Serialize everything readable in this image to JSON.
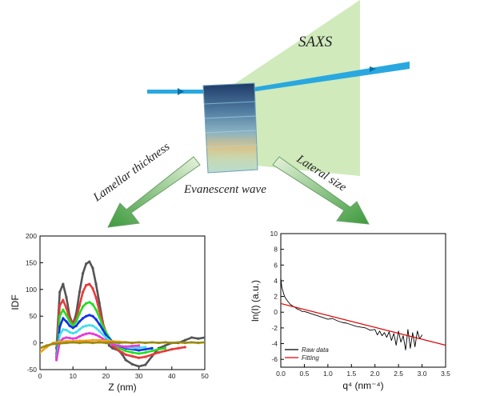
{
  "diagram": {
    "saxs_label": "SAXS",
    "lamellar_label": "Lamellar thickness",
    "lateral_label": "Lateral size",
    "evanescent_label": "Evanescent wave"
  },
  "chart_data": [
    {
      "type": "line",
      "xlabel": "Z (nm)",
      "ylabel": "IDF",
      "xlim": [
        0,
        50
      ],
      "ylim": [
        -50,
        200
      ],
      "xticks": [
        "0",
        "10",
        "20",
        "30",
        "40",
        "50"
      ],
      "yticks": [
        "-50",
        "0",
        "50",
        "100",
        "150",
        "200"
      ],
      "series": [
        {
          "name": "dark gray",
          "color": "#555555",
          "x": [
            5,
            6,
            7,
            8,
            9,
            10,
            11,
            12,
            13,
            14,
            15,
            16,
            17,
            18,
            19,
            20,
            21,
            22,
            23,
            24,
            25,
            26,
            28,
            30,
            32,
            34,
            36,
            38,
            40,
            42,
            44,
            46,
            48,
            50
          ],
          "y": [
            -10,
            95,
            110,
            85,
            50,
            35,
            55,
            95,
            130,
            148,
            152,
            140,
            110,
            75,
            40,
            10,
            -5,
            -10,
            -12,
            -15,
            -22,
            -32,
            -40,
            -44,
            -41,
            -25,
            -10,
            -5,
            0,
            0,
            5,
            10,
            8,
            10
          ]
        },
        {
          "name": "red",
          "color": "#e83a3a",
          "x": [
            5,
            6,
            7,
            8,
            9,
            10,
            11,
            12,
            13,
            14,
            15,
            16,
            17,
            18,
            19,
            20,
            21,
            22,
            23,
            24,
            25,
            26,
            28,
            30,
            32,
            34,
            36,
            38,
            40,
            42,
            44
          ],
          "y": [
            -20,
            70,
            80,
            65,
            45,
            35,
            45,
            70,
            95,
            108,
            110,
            102,
            85,
            60,
            38,
            20,
            5,
            -5,
            -10,
            -15,
            -18,
            -22,
            -25,
            -28,
            -26,
            -22,
            -18,
            -15,
            -12,
            -10,
            -8
          ]
        },
        {
          "name": "green",
          "color": "#22dd22",
          "x": [
            5,
            6,
            7,
            8,
            9,
            10,
            11,
            12,
            13,
            14,
            15,
            16,
            17,
            18,
            19,
            20,
            21,
            22,
            23,
            24,
            26,
            28,
            30,
            32,
            34,
            36,
            38
          ],
          "y": [
            -25,
            50,
            62,
            52,
            40,
            32,
            40,
            55,
            68,
            74,
            76,
            72,
            62,
            48,
            32,
            20,
            10,
            2,
            -5,
            -10,
            -15,
            -18,
            -20,
            -18,
            -15,
            -12,
            -10
          ]
        },
        {
          "name": "blue",
          "color": "#1030e8",
          "x": [
            5,
            6,
            7,
            8,
            9,
            10,
            11,
            12,
            13,
            14,
            15,
            16,
            17,
            18,
            19,
            20,
            21,
            22,
            23,
            24,
            26,
            28,
            30,
            32,
            34
          ],
          "y": [
            -28,
            30,
            46,
            40,
            32,
            28,
            32,
            40,
            46,
            50,
            52,
            50,
            44,
            35,
            25,
            15,
            8,
            2,
            -3,
            -6,
            -10,
            -12,
            -14,
            -12,
            -10
          ]
        },
        {
          "name": "cyan",
          "color": "#44ddee",
          "x": [
            5,
            6,
            7,
            8,
            9,
            10,
            11,
            12,
            13,
            14,
            15,
            16,
            17,
            18,
            19,
            20,
            21,
            22,
            24,
            26,
            28,
            30,
            32
          ],
          "y": [
            -30,
            15,
            25,
            24,
            20,
            18,
            20,
            25,
            30,
            32,
            33,
            32,
            28,
            22,
            16,
            10,
            5,
            0,
            -5,
            -8,
            -10,
            -9,
            -8
          ]
        },
        {
          "name": "magenta",
          "color": "#e83ad8",
          "x": [
            5,
            6,
            7,
            8,
            9,
            10,
            11,
            12,
            13,
            14,
            15,
            16,
            17,
            18,
            19,
            20,
            21,
            22,
            24,
            26,
            28,
            30
          ],
          "y": [
            -32,
            2,
            8,
            10,
            9,
            8,
            9,
            12,
            15,
            17,
            18,
            17,
            15,
            12,
            8,
            4,
            0,
            -3,
            -6,
            -7,
            -6,
            -5
          ]
        },
        {
          "name": "orange",
          "color": "#f0a020",
          "x": [
            0,
            2,
            4,
            6,
            8,
            10,
            12,
            14,
            16,
            18,
            20,
            22,
            24,
            26,
            28
          ],
          "y": [
            -18,
            -8,
            0,
            2,
            3,
            3,
            4,
            4,
            5,
            5,
            4,
            3,
            2,
            1,
            0
          ]
        },
        {
          "name": "olive",
          "color": "#9a8a10",
          "x": [
            0,
            2,
            4,
            6,
            8,
            10,
            12,
            14,
            16,
            18,
            20,
            22,
            24,
            26,
            28,
            30,
            32,
            34,
            36,
            38,
            40,
            42,
            44,
            46,
            48,
            50
          ],
          "y": [
            -10,
            -5,
            -2,
            -1,
            0,
            1,
            0,
            1,
            0,
            1,
            0,
            1,
            0,
            1,
            0,
            1,
            0,
            1,
            0,
            1,
            0,
            1,
            0,
            1,
            0,
            1
          ]
        }
      ]
    },
    {
      "type": "line",
      "xlabel": "q⁴ (nm⁻⁴)",
      "ylabel": "ln(I) (a.u.)",
      "xlim": [
        0,
        3.5
      ],
      "ylim": [
        -7,
        10
      ],
      "xticks": [
        "0.0",
        "0.5",
        "1.0",
        "1.5",
        "2.0",
        "2.5",
        "3.0",
        "3.5"
      ],
      "yticks": [
        "-6",
        "-4",
        "-2",
        "0",
        "2",
        "4",
        "6",
        "8",
        "10"
      ],
      "legend": [
        "Raw data",
        "Fitting"
      ],
      "legend_position": "bottom-left",
      "series": [
        {
          "name": "Raw data",
          "color": "#000000",
          "x": [
            0.0,
            0.02,
            0.05,
            0.08,
            0.12,
            0.16,
            0.2,
            0.25,
            0.3,
            0.35,
            0.4,
            0.45,
            0.5,
            0.6,
            0.7,
            0.8,
            0.9,
            1.0,
            1.1,
            1.2,
            1.3,
            1.4,
            1.5,
            1.6,
            1.7,
            1.8,
            1.9,
            2.0,
            2.05,
            2.1,
            2.15,
            2.2,
            2.25,
            2.3,
            2.35,
            2.4,
            2.45,
            2.5,
            2.55,
            2.6,
            2.65,
            2.7,
            2.75,
            2.8,
            2.85,
            2.9,
            2.95,
            3.0
          ],
          "y": [
            4.4,
            3.2,
            2.6,
            2.0,
            1.6,
            1.3,
            1.0,
            0.8,
            0.6,
            0.4,
            0.3,
            0.1,
            0.1,
            -0.1,
            -0.3,
            -0.5,
            -0.7,
            -0.9,
            -0.8,
            -1.1,
            -1.3,
            -1.4,
            -1.6,
            -1.8,
            -1.9,
            -2.0,
            -2.3,
            -2.2,
            -2.9,
            -2.4,
            -3.0,
            -2.6,
            -3.2,
            -2.5,
            -3.6,
            -2.7,
            -4.2,
            -2.4,
            -3.8,
            -3.0,
            -4.8,
            -2.2,
            -4.6,
            -2.6,
            -4.4,
            -2.4,
            -3.4,
            -2.9
          ]
        },
        {
          "name": "Fitting",
          "color": "#e00000",
          "x": [
            0,
            3.5
          ],
          "y": [
            1.1,
            -4.2
          ]
        }
      ]
    }
  ]
}
